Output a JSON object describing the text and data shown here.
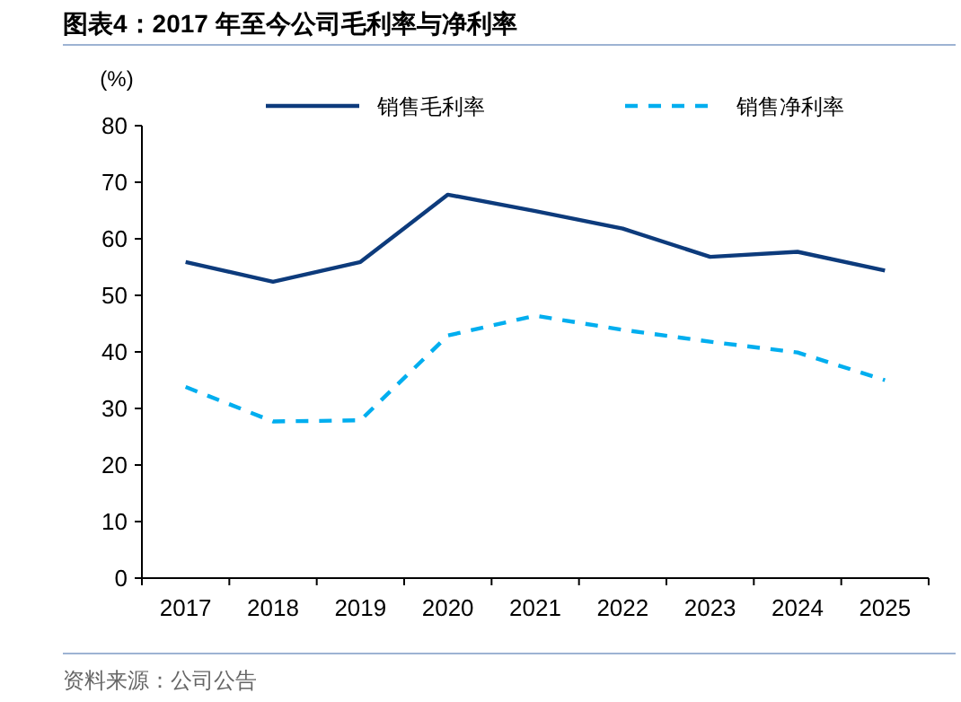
{
  "chart_data": {
    "type": "line",
    "title": "图表4：2017 年至今公司毛利率与净利率",
    "ylabel": "(%)",
    "categories": [
      "2017",
      "2018",
      "2019",
      "2020",
      "2021",
      "2022",
      "2023",
      "2024",
      "2025"
    ],
    "series": [
      {
        "name": "销售毛利率",
        "color": "#0d3b7c",
        "line_style": "solid",
        "values": [
          55.9,
          52.4,
          55.9,
          67.8,
          64.9,
          61.8,
          56.8,
          57.7,
          54.4
        ]
      },
      {
        "name": "销售净利率",
        "color": "#00aeef",
        "line_style": "dashed",
        "values": [
          33.8,
          27.7,
          27.9,
          42.9,
          46.4,
          43.9,
          41.8,
          39.9,
          35.0
        ]
      }
    ],
    "ylim": [
      0,
      80
    ],
    "yticks": [
      0,
      10,
      20,
      30,
      40,
      50,
      60,
      70,
      80
    ],
    "grid": false,
    "legend": "top",
    "marker": "none",
    "annotations": [
      "资料来源：公司公告"
    ]
  }
}
